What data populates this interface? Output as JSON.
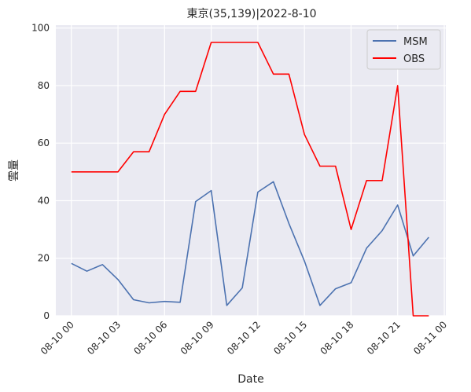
{
  "chart_data": {
    "type": "line",
    "title": "東京(35,139)|2022-8-10",
    "xlabel": "Date",
    "ylabel": "雲量",
    "ylim": [
      0,
      101
    ],
    "xlim": [
      "2022-08-10 00:00",
      "2022-08-11 00:00"
    ],
    "grid": true,
    "legend": "top-right",
    "x_ticks": [
      "08-10 00",
      "08-10 03",
      "08-10 06",
      "08-10 09",
      "08-10 12",
      "08-10 15",
      "08-10 18",
      "08-10 21",
      "08-11 00"
    ],
    "y_ticks": [
      0,
      20,
      40,
      60,
      80,
      100
    ],
    "x": [
      "2022-08-10 00:00",
      "2022-08-10 01:00",
      "2022-08-10 02:00",
      "2022-08-10 03:00",
      "2022-08-10 04:00",
      "2022-08-10 05:00",
      "2022-08-10 06:00",
      "2022-08-10 07:00",
      "2022-08-10 08:00",
      "2022-08-10 09:00",
      "2022-08-10 10:00",
      "2022-08-10 11:00",
      "2022-08-10 12:00",
      "2022-08-10 13:00",
      "2022-08-10 14:00",
      "2022-08-10 15:00",
      "2022-08-10 16:00",
      "2022-08-10 17:00",
      "2022-08-10 18:00",
      "2022-08-10 19:00",
      "2022-08-10 20:00",
      "2022-08-10 21:00",
      "2022-08-10 22:00",
      "2022-08-10 23:00"
    ],
    "series": [
      {
        "name": "MSM",
        "color": "#4c72b0",
        "values": [
          18.2,
          15.5,
          17.8,
          12.6,
          5.6,
          4.5,
          5.0,
          4.7,
          39.7,
          43.5,
          3.6,
          9.7,
          43.0,
          46.6,
          32.1,
          19.0,
          3.6,
          9.4,
          11.5,
          23.5,
          29.6,
          38.5,
          20.8,
          27.3
        ]
      },
      {
        "name": "OBS",
        "color": "#ff0000",
        "values": [
          50,
          50,
          50,
          50,
          57,
          57,
          70,
          78,
          78,
          95,
          95,
          95,
          95,
          84,
          84,
          63,
          52,
          52,
          30,
          47,
          47,
          80,
          0,
          0
        ]
      }
    ]
  }
}
